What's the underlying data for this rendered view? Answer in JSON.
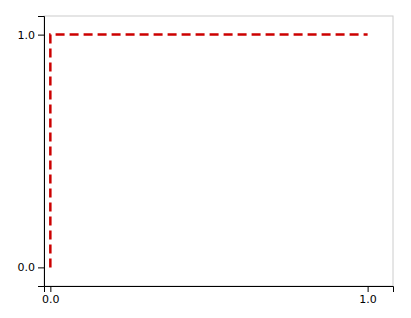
{
  "chart_data": {
    "type": "line",
    "x": [
      0.0,
      0.0,
      1.0
    ],
    "values": [
      0.0,
      1.0,
      1.0
    ],
    "color": "#cc0000",
    "line_style": "dashed",
    "xlim": [
      -0.02,
      1.08
    ],
    "ylim": [
      -0.08,
      1.08
    ],
    "xticks": [
      {
        "value": 0.0,
        "label": "0.0"
      },
      {
        "value": 1.0,
        "label": "1.0"
      }
    ],
    "yticks": [
      {
        "value": 0.0,
        "label": "0.0"
      },
      {
        "value": 1.0,
        "label": "1.0"
      }
    ]
  }
}
